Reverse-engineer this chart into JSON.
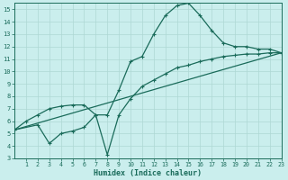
{
  "xlabel": "Humidex (Indice chaleur)",
  "bg_color": "#caeeed",
  "grid_color": "#aed8d4",
  "line_color": "#1a6b5a",
  "xlim": [
    0,
    23
  ],
  "ylim": [
    3,
    15.5
  ],
  "xticks": [
    1,
    2,
    3,
    4,
    5,
    6,
    7,
    8,
    9,
    10,
    11,
    12,
    13,
    14,
    15,
    16,
    17,
    18,
    19,
    20,
    21,
    22,
    23
  ],
  "yticks": [
    3,
    4,
    5,
    6,
    7,
    8,
    9,
    10,
    11,
    12,
    13,
    14,
    15
  ],
  "line1_x": [
    0,
    1,
    2,
    3,
    4,
    5,
    6,
    7,
    8,
    9,
    10,
    11,
    12,
    13,
    14,
    15,
    16,
    17,
    18,
    19,
    20,
    21,
    22,
    23
  ],
  "line1_y": [
    5.3,
    6.0,
    6.5,
    7.0,
    7.2,
    7.3,
    7.3,
    6.5,
    6.5,
    8.5,
    10.8,
    11.2,
    13.0,
    14.5,
    15.3,
    15.5,
    14.5,
    13.3,
    12.3,
    12.0,
    12.0,
    11.8,
    11.8,
    11.5
  ],
  "line2_x": [
    0,
    2,
    3,
    4,
    5,
    6,
    7,
    8,
    9,
    10,
    11,
    12,
    13,
    14,
    15,
    16,
    17,
    18,
    19,
    20,
    21,
    22,
    23
  ],
  "line2_y": [
    5.3,
    5.7,
    4.2,
    5.0,
    5.2,
    5.5,
    6.5,
    3.3,
    6.5,
    7.8,
    8.8,
    9.3,
    9.8,
    10.3,
    10.5,
    10.8,
    11.0,
    11.2,
    11.3,
    11.4,
    11.4,
    11.5,
    11.5
  ],
  "line3_x": [
    0,
    23
  ],
  "line3_y": [
    5.3,
    11.5
  ]
}
